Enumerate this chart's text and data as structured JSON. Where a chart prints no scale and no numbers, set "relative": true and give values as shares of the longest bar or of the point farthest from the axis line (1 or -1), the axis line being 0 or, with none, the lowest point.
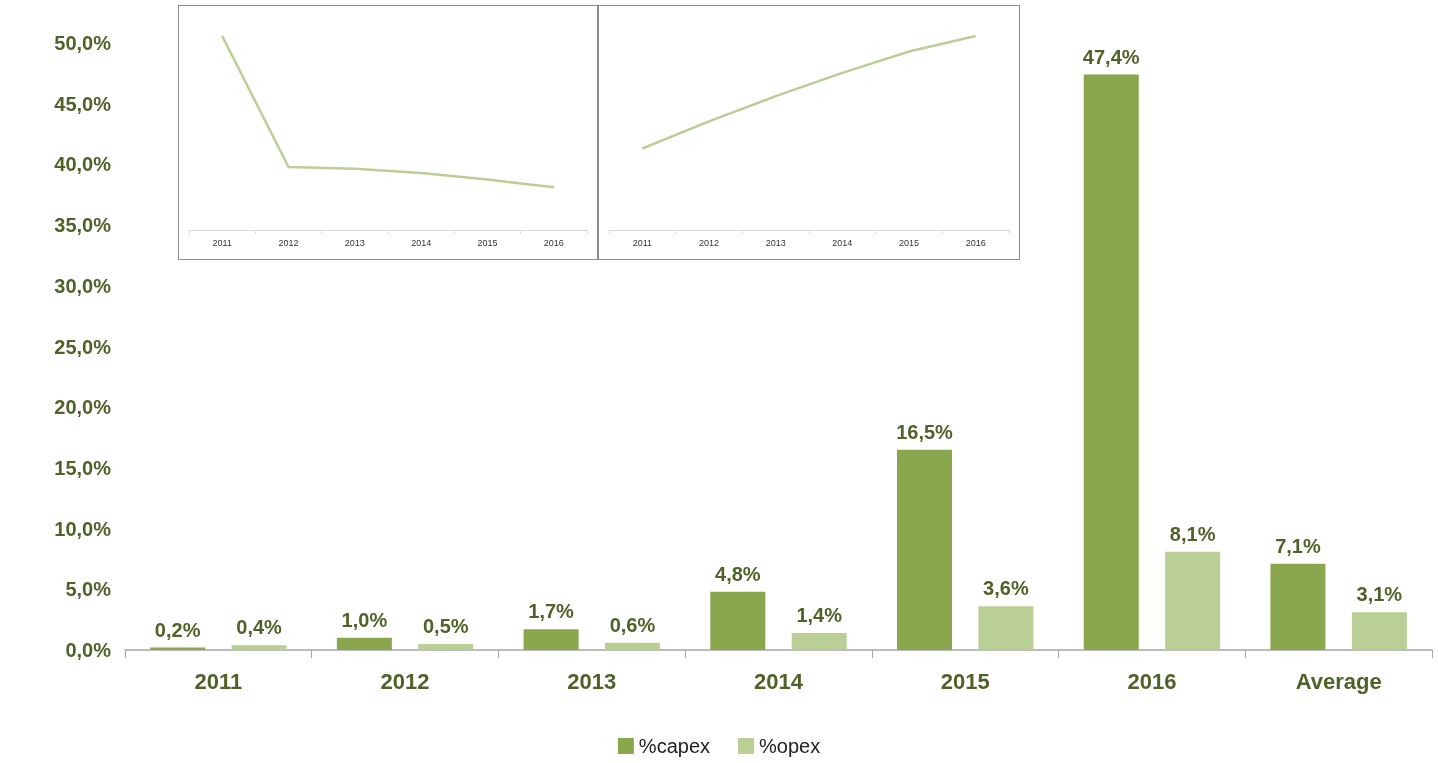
{
  "chart_data": [
    {
      "type": "bar",
      "categories": [
        "2011",
        "2012",
        "2013",
        "2014",
        "2015",
        "2016",
        "Average"
      ],
      "series": [
        {
          "name": "%capex",
          "color": "#8aa74e",
          "values": [
            0.2,
            1.0,
            1.7,
            4.8,
            16.5,
            47.4,
            7.1
          ],
          "value_labels": [
            "0,2%",
            "1,0%",
            "1,7%",
            "4,8%",
            "16,5%",
            "47,4%",
            "7,1%"
          ]
        },
        {
          "name": "%opex",
          "color": "#b9cf96",
          "values": [
            0.4,
            0.5,
            0.6,
            1.4,
            3.6,
            8.1,
            3.1
          ],
          "value_labels": [
            "0,4%",
            "0,5%",
            "0,6%",
            "1,4%",
            "3,6%",
            "8,1%",
            "3,1%"
          ]
        }
      ],
      "ylim": [
        0,
        50
      ],
      "yticks": [
        {
          "value": 0,
          "label": "0,0%"
        },
        {
          "value": 5,
          "label": "5,0%"
        },
        {
          "value": 10,
          "label": "10,0%"
        },
        {
          "value": 15,
          "label": "15,0%"
        },
        {
          "value": 20,
          "label": "20,0%"
        },
        {
          "value": 25,
          "label": "25,0%"
        },
        {
          "value": 30,
          "label": "30,0%"
        },
        {
          "value": 35,
          "label": "35,0%"
        },
        {
          "value": 40,
          "label": "40,0%"
        },
        {
          "value": 45,
          "label": "45,0%"
        },
        {
          "value": 50,
          "label": "50,0%"
        }
      ],
      "grid": false,
      "legend": "bottom"
    },
    {
      "type": "line",
      "categories": [
        "2011",
        "2012",
        "2013",
        "2014",
        "2015",
        "2016"
      ],
      "relative": true,
      "series": [
        {
          "color": "#b9cf96",
          "values": [
            1,
            0.325,
            0.316,
            0.294,
            0.26,
            0.22
          ]
        }
      ],
      "grid": false,
      "legend": false,
      "marker": "none"
    },
    {
      "type": "line",
      "categories": [
        "2011",
        "2012",
        "2013",
        "2014",
        "2015",
        "2016"
      ],
      "relative": true,
      "series": [
        {
          "color": "#b9cf96",
          "values": [
            0.42,
            0.56,
            0.69,
            0.81,
            0.92,
            1
          ]
        }
      ],
      "grid": false,
      "legend": false,
      "marker": "none"
    }
  ]
}
